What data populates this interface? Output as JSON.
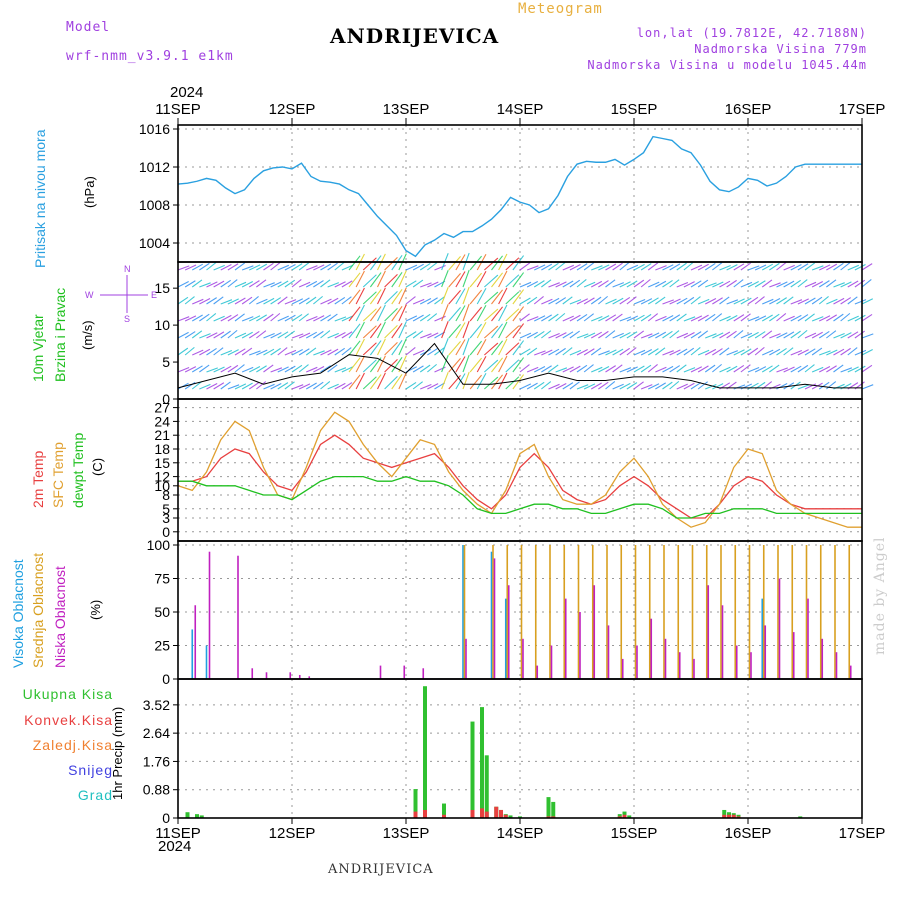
{
  "header": {
    "model_label": "Model",
    "model_value": "wrf-nmm_v3.9.1 e1km",
    "station": "ANDRIJEVICA",
    "meteogram": "Meteogram",
    "lonlat": "lon,lat (19.7812E, 42.7188N)",
    "altitude": "Nadmorska Visina 779m",
    "model_altitude": "Nadmorska Visina u modelu 1045.44m",
    "year": "2024",
    "footer_station": "ANDRIJEVICA",
    "watermark": "made by Angel"
  },
  "date_ticks": [
    "11SEP",
    "12SEP",
    "13SEP",
    "14SEP",
    "15SEP",
    "16SEP",
    "17SEP"
  ],
  "labels": {
    "pressure": "Pritisak na nivou mora",
    "pressure_unit": "(hPa)",
    "wind_a": "10m Vjetar",
    "wind_b": "Brzina i Pravac",
    "wind_unit": "(m/s)",
    "compass_n": "N",
    "compass_s": "S",
    "compass_w": "W",
    "compass_e": "E",
    "temp_a": "2m Temp",
    "temp_b": "SFC Temp",
    "temp_c": "dewpt Temp",
    "temp_unit": "(C)",
    "cloud_a": "Visoka Oblacnost",
    "cloud_b": "Srednja Oblacnost",
    "cloud_c": "Niska Oblacnost",
    "cloud_unit": "(%)",
    "precip_unit": "1hr Precip (mm)",
    "precip_legend": [
      "Ukupna Kisa",
      "Konvek.Kisa",
      "Zaledj.Kisa",
      "Snijeg",
      "Grad"
    ]
  },
  "colors": {
    "pressure": "#2aa0e0",
    "temp_2m": "#e84040",
    "temp_sfc": "#e0a030",
    "dewpoint": "#20c020",
    "cloud_high": "#20a0e0",
    "cloud_mid": "#d8a020",
    "cloud_low": "#c020c0",
    "rain_total": "#30c030",
    "rain_conv": "#e84040",
    "freezing": "#f08030",
    "snow": "#4040e0",
    "hail": "#20c0c0",
    "purple": "#a040e0"
  },
  "chart_data": [
    {
      "type": "line",
      "panel": "pressure",
      "x": [
        0,
        2,
        4,
        6,
        8,
        10,
        12,
        14,
        16,
        18,
        20,
        22,
        24,
        26,
        28,
        30,
        32,
        34,
        36,
        38,
        40,
        42,
        44,
        46,
        48,
        50,
        52,
        54,
        56,
        58,
        60,
        62,
        64,
        66,
        68,
        70,
        72,
        74,
        76,
        78,
        80,
        82,
        84,
        86,
        88,
        90,
        92,
        94,
        96,
        98,
        100,
        102,
        104,
        106,
        108,
        110,
        112,
        114,
        116,
        118,
        120,
        122,
        124,
        126,
        128,
        130,
        132,
        134,
        136,
        138,
        140,
        142,
        144
      ],
      "values": [
        1010.2,
        1010.3,
        1010.5,
        1010.8,
        1010.6,
        1009.8,
        1009.2,
        1009.6,
        1010.8,
        1011.6,
        1011.9,
        1012.0,
        1011.8,
        1012.4,
        1011.0,
        1010.5,
        1010.4,
        1010.2,
        1009.6,
        1009.2,
        1008.0,
        1006.8,
        1005.8,
        1004.8,
        1003.2,
        1002.6,
        1003.8,
        1004.3,
        1005.0,
        1004.6,
        1005.2,
        1005.2,
        1005.8,
        1006.5,
        1007.5,
        1008.8,
        1008.3,
        1008.0,
        1007.2,
        1007.6,
        1009.0,
        1011.0,
        1012.3,
        1012.6,
        1012.5,
        1012.5,
        1012.8,
        1012.2,
        1012.8,
        1013.5,
        1015.2,
        1015.0,
        1014.8,
        1013.9,
        1013.5,
        1012.2,
        1010.5,
        1009.6,
        1009.4,
        1009.9,
        1010.8,
        1010.6,
        1010.0,
        1010.3,
        1011.0,
        1012.0,
        1012.3,
        1012.3,
        1012.3,
        1012.3,
        1012.3,
        1012.3,
        1012.3
      ],
      "ylim": [
        1002,
        1016
      ],
      "yticks": [
        1004,
        1008,
        1012,
        1016
      ],
      "xlabel": "",
      "ylabel": "(hPa)"
    },
    {
      "type": "line",
      "panel": "wind",
      "x": [
        0,
        6,
        12,
        18,
        24,
        30,
        36,
        42,
        48,
        54,
        60,
        66,
        72,
        78,
        84,
        90,
        96,
        102,
        108,
        114,
        120,
        126,
        132,
        138,
        144
      ],
      "series": [
        {
          "name": "speed",
          "values": [
            1.5,
            2.5,
            3.5,
            2.0,
            3.0,
            3.5,
            6.0,
            5.5,
            3.5,
            7.5,
            2.0,
            2.0,
            2.5,
            3.5,
            2.5,
            2.5,
            3.0,
            3.0,
            2.5,
            1.5,
            1.5,
            1.5,
            2.0,
            1.5,
            1.5
          ]
        }
      ],
      "ylim": [
        0,
        18
      ],
      "yticks": [
        0,
        5,
        10,
        15
      ],
      "ylabel": "(m/s)"
    },
    {
      "type": "line",
      "panel": "temperature",
      "x": [
        0,
        3,
        6,
        9,
        12,
        15,
        18,
        21,
        24,
        27,
        30,
        33,
        36,
        39,
        42,
        45,
        48,
        51,
        54,
        57,
        60,
        63,
        66,
        69,
        72,
        75,
        78,
        81,
        84,
        87,
        90,
        93,
        96,
        99,
        102,
        105,
        108,
        111,
        114,
        117,
        120,
        123,
        126,
        129,
        132,
        135,
        138,
        141,
        144
      ],
      "series": [
        {
          "name": "2m Temp",
          "values": [
            11,
            11,
            12,
            16,
            18,
            17,
            13,
            10,
            9,
            13,
            19,
            21,
            19,
            16,
            15,
            14,
            15,
            16,
            17,
            14,
            10,
            7,
            5,
            8,
            14,
            17,
            14,
            9,
            7,
            6,
            7,
            10,
            12,
            10,
            7,
            5,
            3,
            3,
            6,
            10,
            12,
            11,
            8,
            6,
            5,
            5,
            5,
            5,
            5
          ]
        },
        {
          "name": "SFC Temp",
          "values": [
            10,
            9,
            13,
            20,
            24,
            22,
            14,
            8,
            7,
            14,
            22,
            26,
            24,
            19,
            15,
            12,
            16,
            20,
            19,
            13,
            9,
            6,
            4,
            9,
            17,
            19,
            12,
            7,
            6,
            6,
            8,
            13,
            16,
            12,
            6,
            3,
            1,
            2,
            6,
            14,
            18,
            17,
            9,
            6,
            4,
            3,
            2,
            1,
            1
          ]
        },
        {
          "name": "dewpt Temp",
          "values": [
            11,
            11,
            10,
            10,
            10,
            9,
            8,
            8,
            7,
            9,
            11,
            12,
            12,
            12,
            11,
            11,
            12,
            11,
            11,
            10,
            8,
            5,
            4,
            4,
            5,
            6,
            6,
            5,
            5,
            4,
            4,
            5,
            6,
            6,
            5,
            3,
            3,
            4,
            4,
            5,
            5,
            5,
            4,
            4,
            4,
            4,
            4,
            4,
            4
          ]
        }
      ],
      "ylim": [
        -2,
        28
      ],
      "yticks": [
        0,
        3,
        5,
        8,
        10,
        12,
        15,
        18,
        21,
        24,
        27
      ],
      "ylabel": "(C)"
    },
    {
      "type": "bar",
      "panel": "clouds",
      "x": [
        3,
        6,
        12,
        15,
        18,
        23,
        25,
        27,
        42,
        47,
        51,
        60,
        66,
        69,
        72,
        75,
        78,
        81,
        84,
        87,
        90,
        93,
        96,
        99,
        102,
        105,
        108,
        111,
        114,
        117,
        120,
        123,
        126,
        129,
        132,
        135,
        138,
        141
      ],
      "series": [
        {
          "name": "Visoka Oblacnost",
          "values": [
            37,
            25,
            0,
            0,
            0,
            0,
            0,
            0,
            0,
            0,
            0,
            100,
            95,
            60,
            0,
            0,
            0,
            0,
            0,
            0,
            0,
            0,
            0,
            0,
            0,
            0,
            0,
            0,
            0,
            0,
            0,
            60,
            0,
            0,
            0,
            0,
            0,
            0
          ]
        },
        {
          "name": "Srednja Oblacnost",
          "values": [
            0,
            0,
            0,
            0,
            0,
            0,
            0,
            0,
            0,
            0,
            0,
            100,
            100,
            100,
            100,
            100,
            100,
            100,
            100,
            100,
            100,
            100,
            100,
            100,
            100,
            100,
            100,
            100,
            100,
            100,
            100,
            100,
            100,
            100,
            100,
            100,
            100,
            100
          ]
        },
        {
          "name": "Niska Oblacnost",
          "values": [
            55,
            95,
            92,
            8,
            5,
            5,
            3,
            2,
            10,
            10,
            8,
            30,
            90,
            70,
            30,
            10,
            25,
            60,
            50,
            70,
            40,
            15,
            25,
            45,
            30,
            20,
            15,
            70,
            55,
            25,
            20,
            40,
            75,
            35,
            60,
            30,
            20,
            10
          ]
        }
      ],
      "ylim": [
        0,
        100
      ],
      "yticks": [
        0,
        25,
        50,
        75,
        100
      ],
      "ylabel": "(%)"
    },
    {
      "type": "bar",
      "panel": "precipitation",
      "x": [
        2,
        4,
        5,
        50,
        52,
        56,
        62,
        64,
        65,
        67,
        68,
        69,
        70,
        72,
        78,
        79,
        93,
        94,
        95,
        115,
        116,
        117,
        118,
        131
      ],
      "series": [
        {
          "name": "Ukupna Kisa",
          "values": [
            0.18,
            0.12,
            0.08,
            0.9,
            4.1,
            0.45,
            3.0,
            3.45,
            1.95,
            0.35,
            0.25,
            0.12,
            0.08,
            0.05,
            0.65,
            0.5,
            0.12,
            0.2,
            0.08,
            0.25,
            0.18,
            0.15,
            0.1,
            0.05
          ]
        },
        {
          "name": "Konvek.Kisa",
          "values": [
            0,
            0,
            0,
            0.2,
            0.25,
            0.1,
            0.25,
            0.3,
            0.2,
            0.35,
            0.25,
            0.1,
            0,
            0,
            0.05,
            0.05,
            0.05,
            0.1,
            0,
            0.1,
            0.1,
            0.1,
            0.05,
            0
          ]
        }
      ],
      "ylim": [
        0,
        4.2
      ],
      "yticks": [
        0,
        0.88,
        1.76,
        2.64,
        3.52
      ],
      "ylabel": "1hr Precip (mm)"
    }
  ]
}
